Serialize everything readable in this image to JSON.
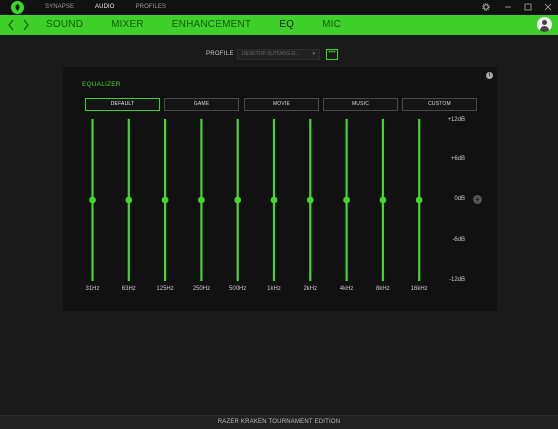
{
  "top_nav": {
    "items": [
      {
        "label": "SYNAPSE",
        "active": false
      },
      {
        "label": "AUDIO",
        "active": true
      },
      {
        "label": "PROFILES",
        "active": false
      }
    ]
  },
  "window_controls": [
    "settings-icon",
    "minimize-icon",
    "maximize-icon",
    "close-icon"
  ],
  "section_nav": {
    "items": [
      {
        "label": "SOUND",
        "active": false
      },
      {
        "label": "MIXER",
        "active": false
      },
      {
        "label": "ENHANCEMENT",
        "active": false
      },
      {
        "label": "EQ",
        "active": true
      },
      {
        "label": "MIC",
        "active": false
      }
    ]
  },
  "profile": {
    "label": "PROFILE",
    "value": "DESKTOP-3UT5N5G-D...",
    "more_label": "•••"
  },
  "equalizer": {
    "title": "EQUALIZER",
    "presets": [
      {
        "label": "DEFAULT",
        "active": true
      },
      {
        "label": "GAME",
        "active": false
      },
      {
        "label": "MOVIE",
        "active": false
      },
      {
        "label": "MUSIC",
        "active": false
      },
      {
        "label": "CUSTOM",
        "active": false
      }
    ],
    "db_scale": [
      "+12dB",
      "+6dB",
      "0dB",
      "-6dB",
      "-12dB"
    ],
    "bands": [
      {
        "freq": "31Hz",
        "gain_db": 0
      },
      {
        "freq": "63Hz",
        "gain_db": 0
      },
      {
        "freq": "125Hz",
        "gain_db": 0
      },
      {
        "freq": "250Hz",
        "gain_db": 0
      },
      {
        "freq": "500Hz",
        "gain_db": 0
      },
      {
        "freq": "1kHz",
        "gain_db": 0
      },
      {
        "freq": "2kHz",
        "gain_db": 0
      },
      {
        "freq": "4kHz",
        "gain_db": 0
      },
      {
        "freq": "8kHz",
        "gain_db": 0
      },
      {
        "freq": "16kHz",
        "gain_db": 0
      }
    ],
    "gain_range": [
      -12,
      12
    ]
  },
  "footer": {
    "device_name": "RAZER KRAKEN TOURNAMENT EDITION"
  },
  "colors": {
    "accent": "#44d62c",
    "background": "#1a1a1a",
    "panel": "#111111"
  }
}
